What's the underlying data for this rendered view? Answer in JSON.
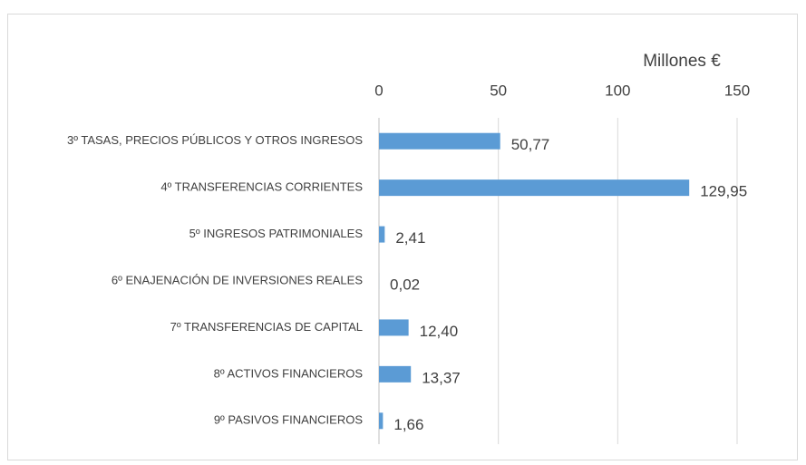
{
  "chart_data": {
    "type": "bar",
    "orientation": "horizontal",
    "x_axis_label": "Millones €",
    "categories": [
      "3º TASAS, PRECIOS PÚBLICOS Y OTROS INGRESOS",
      "4º TRANSFERENCIAS CORRIENTES",
      "5º INGRESOS PATRIMONIALES",
      "6º ENAJENACIÓN DE INVERSIONES REALES",
      "7º TRANSFERENCIAS DE CAPITAL",
      "8º ACTIVOS FINANCIEROS",
      "9º PASIVOS FINANCIEROS"
    ],
    "values": [
      50.77,
      129.95,
      2.41,
      0.02,
      12.4,
      13.37,
      1.66
    ],
    "value_labels": [
      "50,77",
      "129,95",
      "2,41",
      "0,02",
      "12,40",
      "13,37",
      "1,66"
    ],
    "color": "#5b9bd5",
    "xlim": [
      0,
      150
    ],
    "xticks": [
      0,
      50,
      100,
      150
    ],
    "grid": true
  }
}
